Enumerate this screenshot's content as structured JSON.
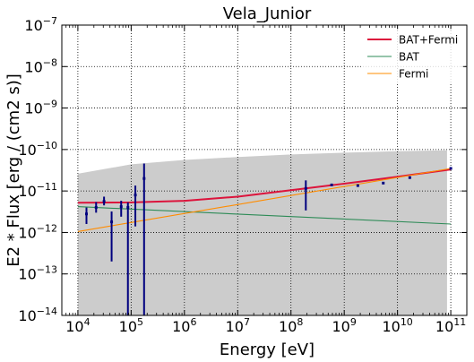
{
  "chart_data": {
    "type": "scatter",
    "title": "Vela_Junior",
    "xlabel": "Energy [eV]",
    "ylabel": "E2 * Flux [erg / (cm2 s)]",
    "xscale": "log",
    "yscale": "log",
    "xlim": [
      5000.0,
      200000000000.0
    ],
    "ylim": [
      1e-14,
      1e-07
    ],
    "grid": true,
    "grid_style": "dotted",
    "legend_position": "top-right",
    "x_tick_labels": [
      {
        "mant": "10",
        "exp": "4"
      },
      {
        "mant": "10",
        "exp": "5"
      },
      {
        "mant": "10",
        "exp": "6"
      },
      {
        "mant": "10",
        "exp": "7"
      },
      {
        "mant": "10",
        "exp": "8"
      },
      {
        "mant": "10",
        "exp": "9"
      },
      {
        "mant": "10",
        "exp": "10"
      },
      {
        "mant": "10",
        "exp": "11"
      }
    ],
    "y_tick_labels": [
      {
        "mant": "10",
        "exp": "−14"
      },
      {
        "mant": "10",
        "exp": "−13"
      },
      {
        "mant": "10",
        "exp": "−12"
      },
      {
        "mant": "10",
        "exp": "−11"
      },
      {
        "mant": "10",
        "exp": "−10"
      },
      {
        "mant": "10",
        "exp": "−9"
      },
      {
        "mant": "10",
        "exp": "−8"
      },
      {
        "mant": "10",
        "exp": "−7"
      }
    ],
    "colors": {
      "band": "#cccccc",
      "points": "#00007f",
      "bat_fermi": "#dc143c",
      "bat": "#2e8b57",
      "fermi": "#ff8c00"
    },
    "series": [
      {
        "name": "BAT+Fermi",
        "kind": "line",
        "color": "#dc143c",
        "x": [
          10000.0,
          100000.0,
          1000000.0,
          10000000.0,
          100000000.0,
          1000000000.0,
          10000000000.0,
          100000000000.0
        ],
        "y": [
          5.2e-12,
          5.3e-12,
          5.8e-12,
          7.3e-12,
          1.05e-11,
          1.5e-11,
          2.2e-11,
          3.3e-11
        ]
      },
      {
        "name": "BAT",
        "kind": "line",
        "color": "#2e8b57",
        "x": [
          10000.0,
          100000000000.0
        ],
        "y": [
          4.2e-12,
          1.6e-12
        ]
      },
      {
        "name": "Fermi",
        "kind": "line",
        "color": "#ff8c00",
        "x": [
          10000.0,
          100000000000.0
        ],
        "y": [
          1.05e-12,
          3.5e-11
        ]
      }
    ],
    "band": {
      "x": [
        10000.0,
        100000.0,
        1000000.0,
        10000000.0,
        100000000.0,
        1000000000.0,
        10000000000.0,
        85000000000.0
      ],
      "y_low": [
        1e-14,
        1e-14,
        1e-14,
        1e-14,
        1e-14,
        1e-14,
        1e-14,
        1e-14
      ],
      "y_high": [
        2.6e-11,
        4.4e-11,
        5.6e-11,
        6.6e-11,
        7.6e-11,
        8.4e-11,
        9.1e-11,
        9.6e-11
      ]
    },
    "points": [
      {
        "x": 14500.0,
        "y": 2.8e-12,
        "ylo": 1.6e-12,
        "yhi": 4e-12
      },
      {
        "x": 22000.0,
        "y": 4e-12,
        "ylo": 3e-12,
        "yhi": 5.4e-12
      },
      {
        "x": 31000.0,
        "y": 5.6e-12,
        "ylo": 4.5e-12,
        "yhi": 7.3e-12
      },
      {
        "x": 43000.0,
        "y": 1.8e-12,
        "ylo": 2e-13,
        "yhi": 3.2e-12
      },
      {
        "x": 65000.0,
        "y": 4.2e-12,
        "ylo": 2.4e-12,
        "yhi": 5.8e-12
      },
      {
        "x": 87000.0,
        "y": 4e-12,
        "ylo": 1e-14,
        "yhi": 5.3e-12
      },
      {
        "x": 120000.0,
        "y": 8e-12,
        "ylo": 1.4e-12,
        "yhi": 1.35e-11
      },
      {
        "x": 175000.0,
        "y": 2e-11,
        "ylo": 1e-14,
        "yhi": 4.6e-11
      },
      {
        "x": 190000000.0,
        "y": 1.15e-11,
        "ylo": 3.4e-12,
        "yhi": 1.8e-11
      },
      {
        "x": 580000000.0,
        "y": 1.4e-11
      },
      {
        "x": 1800000000.0,
        "y": 1.35e-11
      },
      {
        "x": 5400000000.0,
        "y": 1.55e-11
      },
      {
        "x": 17000000000.0,
        "y": 2.1e-11
      },
      {
        "x": 100000000000.0,
        "y": 3.5e-11
      }
    ]
  }
}
